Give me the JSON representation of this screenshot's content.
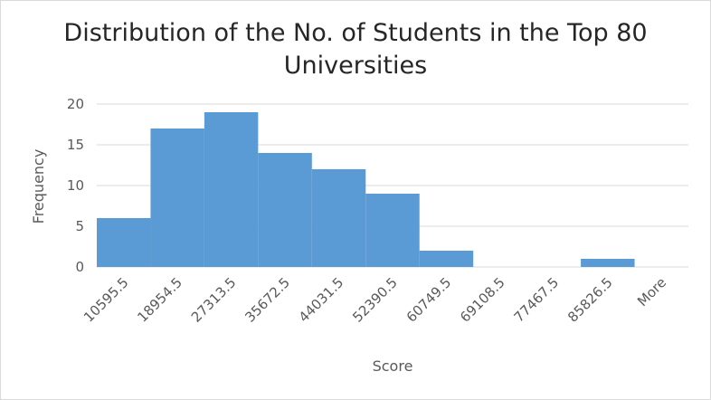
{
  "chart_data": {
    "type": "bar",
    "title_lines": [
      "Distribution of the No. of Students in the Top 80",
      "Universities"
    ],
    "xlabel": "Score",
    "ylabel": "Frequency",
    "categories": [
      "10595.5",
      "18954.5",
      "27313.5",
      "35672.5",
      "44031.5",
      "52390.5",
      "60749.5",
      "69108.5",
      "77467.5",
      "85826.5",
      "More"
    ],
    "values": [
      6,
      17,
      19,
      14,
      12,
      9,
      2,
      0,
      0,
      1,
      0
    ],
    "ylim": [
      0,
      20
    ],
    "yticks": [
      0,
      5,
      10,
      15,
      20
    ],
    "grid": true,
    "legend": "none",
    "colors": {
      "bar": "#5b9bd5",
      "grid": "#d9d9d9",
      "text": "#595959",
      "title": "#262626"
    }
  }
}
